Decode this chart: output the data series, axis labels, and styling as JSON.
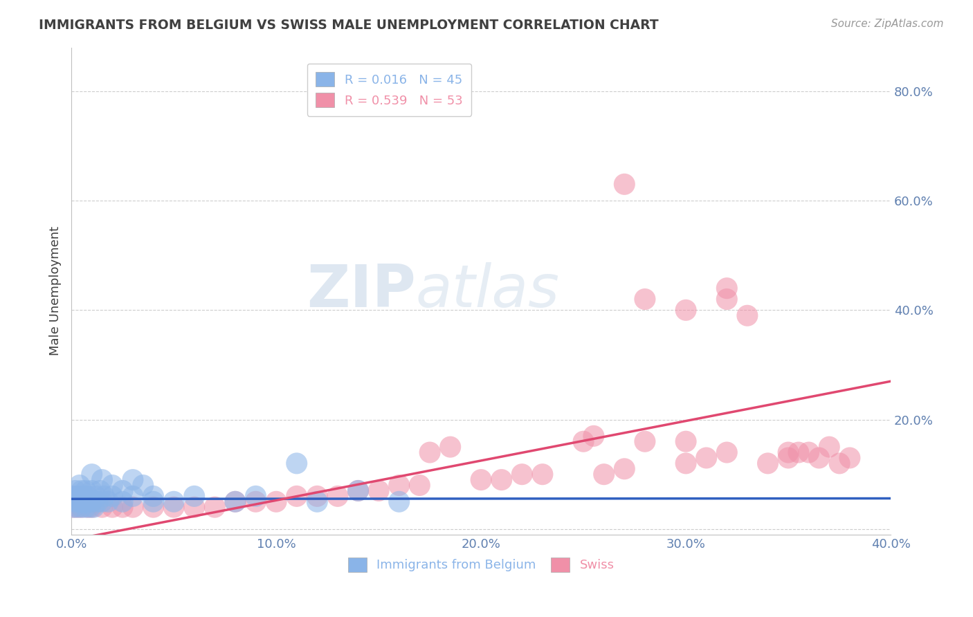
{
  "title": "IMMIGRANTS FROM BELGIUM VS SWISS MALE UNEMPLOYMENT CORRELATION CHART",
  "source": "Source: ZipAtlas.com",
  "ylabel": "Male Unemployment",
  "xlim": [
    0.0,
    0.4
  ],
  "ylim": [
    -0.01,
    0.88
  ],
  "yticks": [
    0.0,
    0.2,
    0.4,
    0.6,
    0.8
  ],
  "ytick_labels": [
    "",
    "20.0%",
    "40.0%",
    "60.0%",
    "80.0%"
  ],
  "xticks": [
    0.0,
    0.1,
    0.2,
    0.3,
    0.4
  ],
  "xtick_labels": [
    "0.0%",
    "10.0%",
    "20.0%",
    "30.0%",
    "40.0%"
  ],
  "legend_items": [
    {
      "label": "R = 0.016   N = 45",
      "color": "#8ab4e8"
    },
    {
      "label": "R = 0.539   N = 53",
      "color": "#f090a8"
    }
  ],
  "blue_scatter_x": [
    0.001,
    0.001,
    0.002,
    0.002,
    0.003,
    0.003,
    0.004,
    0.004,
    0.005,
    0.005,
    0.006,
    0.006,
    0.007,
    0.007,
    0.008,
    0.008,
    0.009,
    0.01,
    0.01,
    0.011,
    0.012,
    0.013,
    0.014,
    0.015,
    0.016,
    0.018,
    0.02,
    0.025,
    0.03,
    0.04,
    0.05,
    0.06,
    0.08,
    0.09,
    0.11,
    0.12,
    0.14,
    0.16,
    0.01,
    0.015,
    0.02,
    0.025,
    0.03,
    0.035,
    0.04
  ],
  "blue_scatter_y": [
    0.04,
    0.06,
    0.05,
    0.07,
    0.04,
    0.06,
    0.05,
    0.08,
    0.04,
    0.07,
    0.05,
    0.06,
    0.04,
    0.07,
    0.05,
    0.06,
    0.04,
    0.05,
    0.07,
    0.04,
    0.06,
    0.05,
    0.07,
    0.05,
    0.06,
    0.05,
    0.06,
    0.05,
    0.06,
    0.05,
    0.05,
    0.06,
    0.05,
    0.06,
    0.12,
    0.05,
    0.07,
    0.05,
    0.1,
    0.09,
    0.08,
    0.07,
    0.09,
    0.08,
    0.06
  ],
  "pink_scatter_x": [
    0.001,
    0.003,
    0.005,
    0.008,
    0.01,
    0.015,
    0.02,
    0.025,
    0.03,
    0.04,
    0.05,
    0.06,
    0.07,
    0.08,
    0.09,
    0.1,
    0.11,
    0.12,
    0.13,
    0.14,
    0.15,
    0.16,
    0.17,
    0.175,
    0.185,
    0.2,
    0.21,
    0.22,
    0.23,
    0.25,
    0.255,
    0.26,
    0.27,
    0.28,
    0.3,
    0.31,
    0.32,
    0.33,
    0.34,
    0.35,
    0.355,
    0.36,
    0.365,
    0.37,
    0.375,
    0.38,
    0.27,
    0.28,
    0.3,
    0.32,
    0.35,
    0.3,
    0.32
  ],
  "pink_scatter_y": [
    0.04,
    0.04,
    0.04,
    0.04,
    0.04,
    0.04,
    0.04,
    0.04,
    0.04,
    0.04,
    0.04,
    0.04,
    0.04,
    0.05,
    0.05,
    0.05,
    0.06,
    0.06,
    0.06,
    0.07,
    0.07,
    0.08,
    0.08,
    0.14,
    0.15,
    0.09,
    0.09,
    0.1,
    0.1,
    0.16,
    0.17,
    0.1,
    0.11,
    0.16,
    0.12,
    0.13,
    0.42,
    0.39,
    0.12,
    0.13,
    0.14,
    0.14,
    0.13,
    0.15,
    0.12,
    0.13,
    0.63,
    0.42,
    0.4,
    0.44,
    0.14,
    0.16,
    0.14
  ],
  "blue_line_x": [
    0.0,
    0.4
  ],
  "blue_line_y": [
    0.055,
    0.056
  ],
  "pink_line_x": [
    0.0,
    0.4
  ],
  "pink_line_y": [
    -0.02,
    0.27
  ],
  "blue_color": "#8ab4e8",
  "pink_color": "#f090a8",
  "blue_line_color": "#3060c0",
  "pink_line_color": "#e04870",
  "watermark_zip": "ZIP",
  "watermark_atlas": "atlas",
  "background_color": "#ffffff",
  "grid_color": "#c8c8c8",
  "title_color": "#404040",
  "tick_color": "#6080b0",
  "ylabel_color": "#404040"
}
